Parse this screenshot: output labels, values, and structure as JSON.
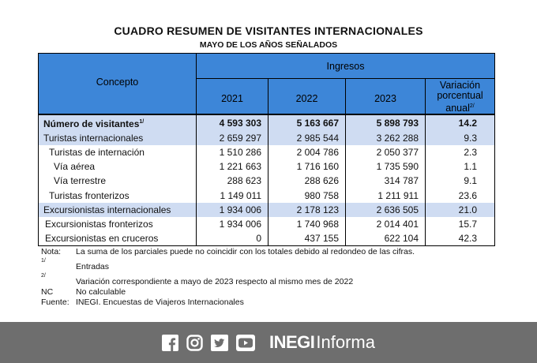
{
  "title": "CUADRO RESUMEN DE VISITANTES INTERNACIONALES",
  "subtitle": "MAYO DE LOS AÑOS SEÑALADOS",
  "table": {
    "header": {
      "concepto": "Concepto",
      "ingresos": "Ingresos",
      "years": [
        "2021",
        "2022",
        "2023"
      ],
      "variation_label": "Variación porcentual anual",
      "variation_sup": "2/"
    },
    "rows": [
      {
        "label": "Número de visitantes",
        "sup": "1/",
        "v2021": "4 593 303",
        "v2022": "5 163 667",
        "v2023": "5 898 793",
        "var": "14.2"
      },
      {
        "label": "Turistas internacionales",
        "sup": "",
        "v2021": "2 659 297",
        "v2022": "2 985 544",
        "v2023": "3 262 288",
        "var": "9.3"
      },
      {
        "label": "Turistas de internación",
        "sup": "",
        "v2021": "1 510 286",
        "v2022": "2 004 786",
        "v2023": "2 050 377",
        "var": "2.3"
      },
      {
        "label": "Vía aérea",
        "sup": "",
        "v2021": "1 221 663",
        "v2022": "1 716 160",
        "v2023": "1 735 590",
        "var": "1.1"
      },
      {
        "label": "Vía terrestre",
        "sup": "",
        "v2021": "288 623",
        "v2022": "288 626",
        "v2023": "314 787",
        "var": "9.1"
      },
      {
        "label": "Turistas fronterizos",
        "sup": "",
        "v2021": "1 149 011",
        "v2022": "980 758",
        "v2023": "1 211 911",
        "var": "23.6"
      },
      {
        "label": "Excursionistas internacionales",
        "sup": "",
        "v2021": "1 934 006",
        "v2022": "2 178 123",
        "v2023": "2 636 505",
        "var": "21.0"
      },
      {
        "label": "Excursionistas fronterizos",
        "sup": "",
        "v2021": "1 934 006",
        "v2022": "1 740 968",
        "v2023": "2 014 401",
        "var": "15.7"
      },
      {
        "label": "Excursionistas en cruceros",
        "sup": "",
        "v2021": "0",
        "v2022": "437 155",
        "v2023": "622 104",
        "var": "42.3"
      }
    ]
  },
  "notes": [
    {
      "key": "Nota:",
      "text": "La suma de los parciales puede no coincidir con los totales debido al redondeo de las cifras."
    },
    {
      "key": "1/",
      "text": "Entradas"
    },
    {
      "key": "2/",
      "text": "Variación correspondiente a mayo de 2023 respecto al mismo mes de 2022"
    },
    {
      "key": "NC",
      "text": "No calculable"
    },
    {
      "key": "Fuente:",
      "text": "INEGI. Encuestas de Viajeros Internacionales"
    }
  ],
  "footer": {
    "brand_strong": "INEGI",
    "brand_light": "Informa",
    "icons": [
      "facebook-icon",
      "instagram-icon",
      "twitter-icon",
      "youtube-icon"
    ],
    "background": "#6e6e6e"
  },
  "colors": {
    "header_blue": "#3d86d8",
    "row_shade": "#cfdcf2"
  }
}
